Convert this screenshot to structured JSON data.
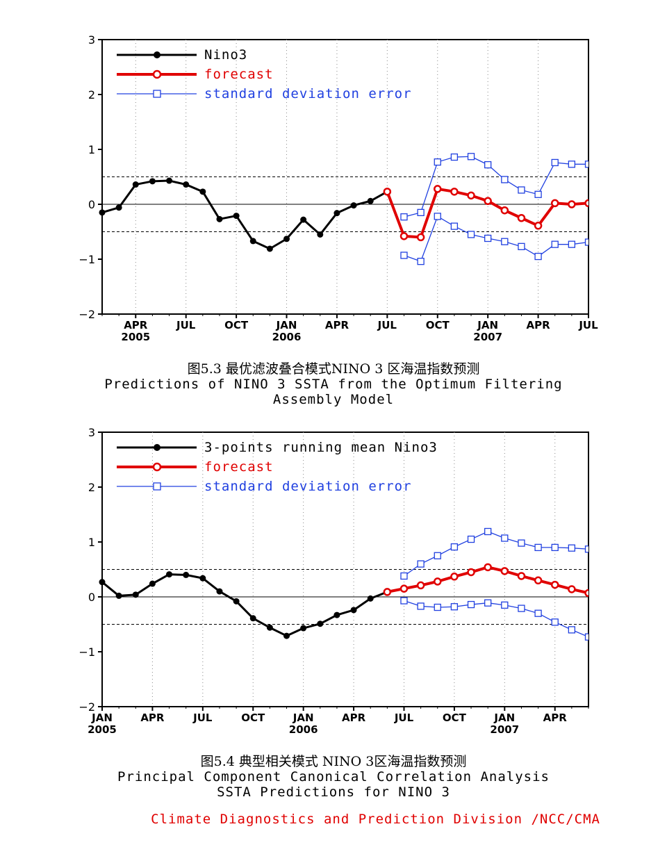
{
  "captions": {
    "chart1_cn": "图5.3  最优滤波叠合模式NINO 3 区海温指数预测",
    "chart1_en1": "Predictions of NINO 3 SSTA from the Optimum Filtering",
    "chart1_en2": "Assembly Model",
    "chart2_cn": "图5.4  典型相关模式 NINO 3区海温指数预测",
    "chart2_en1": "Principal Component Canonical Correlation Analysis",
    "chart2_en2": "SSTA Predictions for NINO 3"
  },
  "footer": "Climate Diagnostics and Prediction Division /NCC/CMA",
  "colors": {
    "observed": "#000000",
    "forecast": "#e00000",
    "error": "#2040e0"
  },
  "chart_data": [
    {
      "type": "line",
      "ylim": [
        -2,
        3
      ],
      "yticks": [
        "3",
        "2",
        "1",
        "0",
        "−1",
        "−2"
      ],
      "xlim": [
        0,
        29
      ],
      "xticks": [
        {
          "month": "APR",
          "year": "2005"
        },
        {
          "month": "JUL",
          "year": ""
        },
        {
          "month": "OCT",
          "year": ""
        },
        {
          "month": "JAN",
          "year": "2006"
        },
        {
          "month": "APR",
          "year": ""
        },
        {
          "month": "JUL",
          "year": ""
        },
        {
          "month": "OCT",
          "year": ""
        },
        {
          "month": "JAN",
          "year": "2007"
        },
        {
          "month": "APR",
          "year": ""
        },
        {
          "month": "JUL",
          "year": ""
        }
      ],
      "xtick_positions": [
        2,
        5,
        8,
        11,
        14,
        17,
        20,
        23,
        26,
        29
      ],
      "reference_lines": [
        0.5,
        -0.5
      ],
      "legend": [
        "Nino3",
        "forecast",
        "standard deviation error"
      ],
      "series": [
        {
          "name": "Nino3",
          "x": [
            0,
            1,
            2,
            3,
            4,
            5,
            6,
            7,
            8,
            9,
            10,
            11,
            12,
            13,
            14,
            15,
            16,
            17
          ],
          "values": [
            -0.15,
            -0.06,
            0.36,
            0.42,
            0.43,
            0.36,
            0.23,
            -0.27,
            -0.21,
            -0.67,
            -0.81,
            -0.63,
            -0.28,
            -0.55,
            -0.16,
            -0.02,
            0.06,
            0.23
          ]
        },
        {
          "name": "forecast",
          "x": [
            17,
            18,
            19,
            20,
            21,
            22,
            23,
            24,
            25,
            26,
            27,
            28,
            29
          ],
          "values": [
            0.23,
            -0.58,
            -0.6,
            0.28,
            0.23,
            0.16,
            0.06,
            -0.11,
            -0.25,
            -0.39,
            0.02,
            0.0,
            0.02
          ]
        },
        {
          "name": "standard deviation error",
          "x": [
            18,
            19,
            20,
            21,
            22,
            23,
            24,
            25,
            26,
            27,
            28,
            29
          ],
          "values": [
            -0.23,
            -0.15,
            0.77,
            0.86,
            0.87,
            0.72,
            0.45,
            0.26,
            0.18,
            0.76,
            0.73,
            0.73
          ]
        },
        {
          "name": "standard deviation error",
          "x": [
            18,
            19,
            20,
            21,
            22,
            23,
            24,
            25,
            26,
            27,
            28,
            29
          ],
          "values": [
            -0.93,
            -1.04,
            -0.22,
            -0.4,
            -0.55,
            -0.62,
            -0.68,
            -0.77,
            -0.95,
            -0.73,
            -0.73,
            -0.69
          ]
        }
      ]
    },
    {
      "type": "line",
      "ylim": [
        -2,
        3
      ],
      "yticks": [
        "3",
        "2",
        "1",
        "0",
        "−1",
        "−2"
      ],
      "xlim": [
        0,
        29
      ],
      "xticks": [
        {
          "month": "JAN",
          "year": "2005"
        },
        {
          "month": "APR",
          "year": ""
        },
        {
          "month": "JUL",
          "year": ""
        },
        {
          "month": "OCT",
          "year": ""
        },
        {
          "month": "JAN",
          "year": "2006"
        },
        {
          "month": "APR",
          "year": ""
        },
        {
          "month": "JUL",
          "year": ""
        },
        {
          "month": "OCT",
          "year": ""
        },
        {
          "month": "JAN",
          "year": "2007"
        },
        {
          "month": "APR",
          "year": ""
        }
      ],
      "xtick_positions": [
        0,
        3,
        6,
        9,
        12,
        15,
        18,
        21,
        24,
        27
      ],
      "reference_lines": [
        0.5,
        -0.5
      ],
      "legend": [
        "3-points running mean Nino3",
        "forecast",
        "standard deviation error"
      ],
      "series": [
        {
          "name": "3-points running mean Nino3",
          "x": [
            0,
            1,
            2,
            3,
            4,
            5,
            6,
            7,
            8,
            9,
            10,
            11,
            12,
            13,
            14,
            15,
            16,
            17
          ],
          "values": [
            0.27,
            0.02,
            0.04,
            0.24,
            0.41,
            0.4,
            0.34,
            0.1,
            -0.08,
            -0.39,
            -0.56,
            -0.71,
            -0.57,
            -0.49,
            -0.33,
            -0.24,
            -0.03,
            0.09
          ]
        },
        {
          "name": "forecast",
          "x": [
            17,
            18,
            19,
            20,
            21,
            22,
            23,
            24,
            25,
            26,
            27,
            28,
            29
          ],
          "values": [
            0.09,
            0.15,
            0.21,
            0.28,
            0.37,
            0.45,
            0.54,
            0.47,
            0.38,
            0.3,
            0.22,
            0.14,
            0.07
          ]
        },
        {
          "name": "standard deviation error",
          "x": [
            18,
            19,
            20,
            21,
            22,
            23,
            24,
            25,
            26,
            27,
            28,
            29
          ],
          "values": [
            0.38,
            0.6,
            0.75,
            0.91,
            1.05,
            1.19,
            1.07,
            0.98,
            0.9,
            0.9,
            0.89,
            0.87
          ]
        },
        {
          "name": "standard deviation error",
          "x": [
            18,
            19,
            20,
            21,
            22,
            23,
            24,
            25,
            26,
            27,
            28,
            29
          ],
          "values": [
            -0.07,
            -0.17,
            -0.19,
            -0.18,
            -0.14,
            -0.11,
            -0.15,
            -0.21,
            -0.3,
            -0.46,
            -0.6,
            -0.73
          ]
        }
      ]
    }
  ]
}
